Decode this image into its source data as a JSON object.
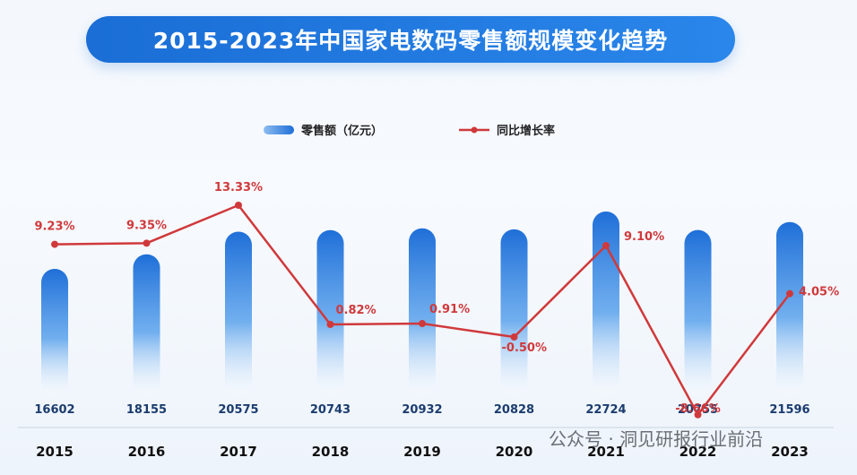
{
  "title": "2015-2023年中国家电数码零售额规模变化趋势",
  "watermark": "公众号 · 洞见研报行业前沿",
  "colors": {
    "bar_top": "#1f6fd8",
    "bar_bottom": "#ffffff",
    "line": "#d0393b",
    "title_bg": "#1a6ed6"
  },
  "chart_data": {
    "type": "bar",
    "categories": [
      "2015",
      "2016",
      "2017",
      "2018",
      "2019",
      "2020",
      "2021",
      "2022",
      "2023"
    ],
    "series": [
      {
        "name": "零售额（亿元）",
        "type": "bar",
        "values": [
          16602,
          18155,
          20575,
          20743,
          20932,
          20828,
          22724,
          20755,
          21596
        ]
      },
      {
        "name": "同比增长率",
        "type": "line",
        "values": [
          9.23,
          9.35,
          13.33,
          0.82,
          0.91,
          -0.5,
          9.1,
          -8.66,
          4.05
        ],
        "labels": [
          "9.23%",
          "9.35%",
          "13.33%",
          "0.82%",
          "0.91%",
          "-0.50%",
          "9.10%",
          "-8.66%",
          "4.05%"
        ]
      }
    ],
    "value_labels": [
      "16602",
      "18155",
      "20575",
      "20743",
      "20932",
      "20828",
      "22724",
      "20755",
      "21596"
    ],
    "legend_position": "top-center",
    "grid": false
  }
}
